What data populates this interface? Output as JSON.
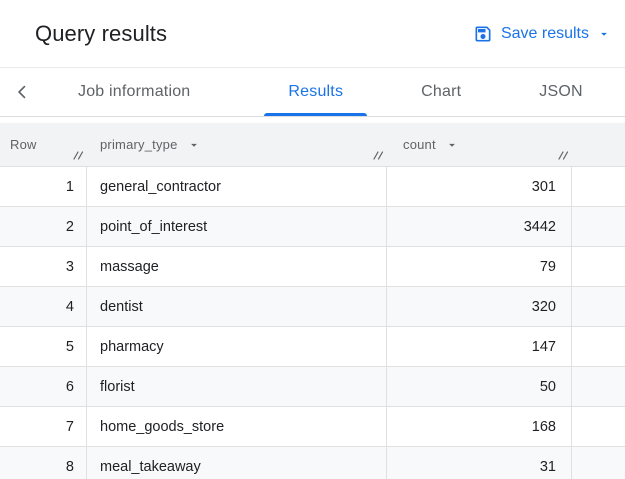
{
  "header": {
    "title": "Query results",
    "save_button": {
      "label": "Save results",
      "icon": "save-icon",
      "caret_icon": "caret-down-icon"
    }
  },
  "tabs": {
    "back_icon": "chevron-left-icon",
    "active_tab": "Results",
    "items": [
      {
        "label": "Job information"
      },
      {
        "label": "Results"
      },
      {
        "label": "Chart"
      },
      {
        "label": "JSON"
      }
    ]
  },
  "table": {
    "columns": [
      {
        "label": "Row",
        "has_menu": false,
        "resize_icon": "column-resize-icon"
      },
      {
        "label": "primary_type",
        "has_menu": true,
        "menu_icon": "caret-down-icon",
        "resize_icon": "column-resize-icon"
      },
      {
        "label": "count",
        "has_menu": true,
        "menu_icon": "caret-down-icon",
        "resize_icon": "column-resize-icon"
      }
    ],
    "rows": [
      {
        "row": "1",
        "primary_type": "general_contractor",
        "count": "301"
      },
      {
        "row": "2",
        "primary_type": "point_of_interest",
        "count": "3442"
      },
      {
        "row": "3",
        "primary_type": "massage",
        "count": "79"
      },
      {
        "row": "4",
        "primary_type": "dentist",
        "count": "320"
      },
      {
        "row": "5",
        "primary_type": "pharmacy",
        "count": "147"
      },
      {
        "row": "6",
        "primary_type": "florist",
        "count": "50"
      },
      {
        "row": "7",
        "primary_type": "home_goods_store",
        "count": "168"
      },
      {
        "row": "8",
        "primary_type": "meal_takeaway",
        "count": "31"
      }
    ]
  },
  "colors": {
    "accent_blue": "#1a73e8",
    "table_header_bg": "#f1f3f4",
    "row_stripe": "#f8f9fa",
    "grid_border": "#e0e0e0",
    "text_primary": "#202124",
    "text_secondary": "#5f6368"
  }
}
